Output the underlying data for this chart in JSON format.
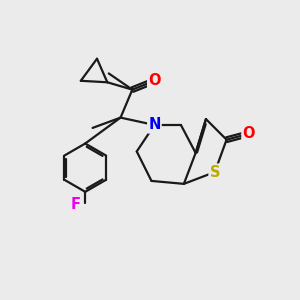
{
  "bg_color": "#ebebeb",
  "bond_color": "#1a1a1a",
  "bond_width": 1.6,
  "atom_colors": {
    "O": "#ff0000",
    "N": "#0000ee",
    "S": "#bbaa00",
    "F": "#ee00ee",
    "C": "#1a1a1a"
  },
  "label_font_size": 10.5
}
